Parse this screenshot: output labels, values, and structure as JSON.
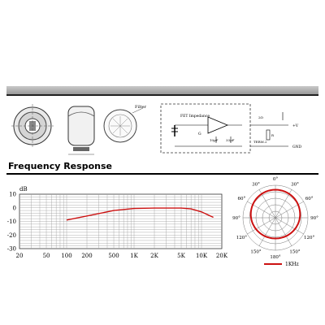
{
  "schematic": {
    "filter_label": "Filter",
    "impedance_label": "FET Impedance",
    "gate_label": "G",
    "cap1_label": "10pF",
    "cap2_label": "33pF",
    "resistor_label": "R",
    "res_value_label": "2Ω",
    "output_label": "+V",
    "ground_label": "GND",
    "term_label": "TERM.2"
  },
  "frequency_response": {
    "title": "Frequency Response",
    "chart_data": {
      "type": "line",
      "ylabel": "dB",
      "xscale": "log",
      "xlim": [
        20,
        20000
      ],
      "ylim": [
        -30,
        10
      ],
      "y_ticks": [
        "10",
        "0",
        "-10",
        "-20",
        "-30"
      ],
      "x_ticks": [
        "20",
        "50",
        "100",
        "200",
        "500",
        "1K",
        "2K",
        "5K",
        "10K",
        "20K"
      ],
      "grid": true,
      "series": [
        {
          "x": [
            100,
            200,
            500,
            1000,
            2000,
            5000,
            7000,
            10000,
            15000
          ],
          "y": [
            -9,
            -6,
            -2,
            -0.5,
            -0.2,
            -0.2,
            -0.8,
            -3,
            -7
          ],
          "color": "#cc1111"
        }
      ]
    }
  },
  "polar": {
    "angle_labels": [
      "0°",
      "30°",
      "30°",
      "60°",
      "60°",
      "90°",
      "90°",
      "120°",
      "120°",
      "150°",
      "150°",
      "180°"
    ],
    "legend_label": "1KHz",
    "curve_color": "#cc1111"
  }
}
